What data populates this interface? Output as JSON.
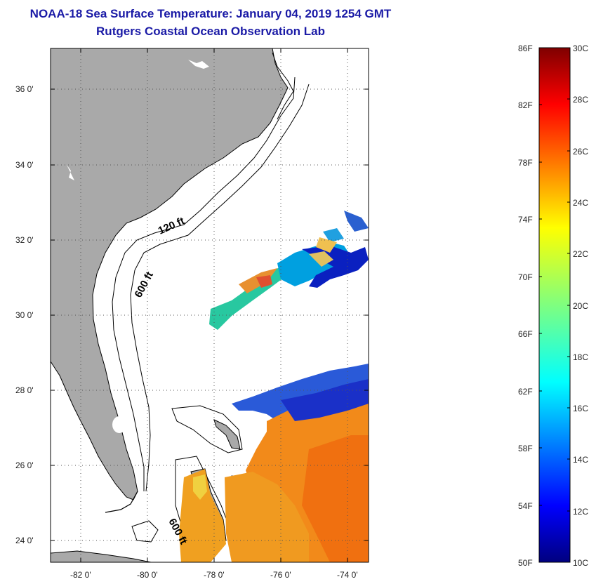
{
  "header": {
    "title": "NOAA-18 Sea Surface Temperature:  January 04, 2019 1254 GMT",
    "subtitle": "Rutgers Coastal Ocean Observation Lab"
  },
  "map": {
    "lat_ticks": [
      "36 0'",
      "34 0'",
      "32 0'",
      "30 0'",
      "28 0'",
      "26 0'",
      "24 0'"
    ],
    "lon_ticks": [
      "-82 0'",
      "-80 0'",
      "-78 0'",
      "-76 0'",
      "-74 0'"
    ],
    "contours": [
      {
        "name": "contour-120ft",
        "label": "120 ft"
      },
      {
        "name": "contour-600ft-north",
        "label": "600 ft"
      },
      {
        "name": "contour-600ft-south",
        "label": "600 ft"
      }
    ],
    "colors": {
      "land": "#a9a9a9",
      "ocean": "#ffffff",
      "grid": "#555555"
    }
  },
  "colorbar": {
    "fahrenheit_labels": [
      "86F",
      "82F",
      "78F",
      "74F",
      "70F",
      "66F",
      "62F",
      "58F",
      "54F",
      "50F"
    ],
    "celsius_labels": [
      "30C",
      "28C",
      "26C",
      "24C",
      "22C",
      "20C",
      "18C",
      "16C",
      "14C",
      "12C",
      "10C"
    ],
    "range_f": [
      50,
      86
    ],
    "range_c": [
      10,
      30
    ]
  }
}
